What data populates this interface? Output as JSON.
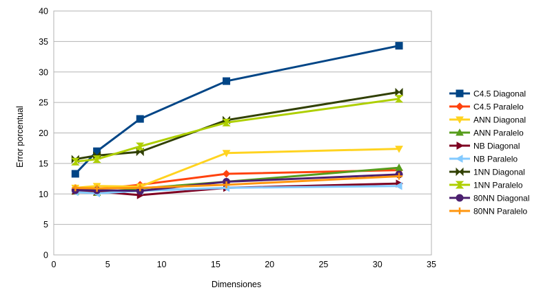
{
  "chart_data": {
    "type": "line",
    "title": "",
    "xlabel": "Dimensiones",
    "ylabel": "Error porcentual",
    "xlim": [
      0,
      35
    ],
    "ylim": [
      0,
      40
    ],
    "xticks": [
      "0",
      "5",
      "10",
      "15",
      "20",
      "25",
      "30",
      "35"
    ],
    "yticks": [
      "0",
      "5",
      "10",
      "15",
      "20",
      "25",
      "30",
      "35",
      "40"
    ],
    "grid": "horizontal",
    "legend_position": "right",
    "x": [
      2,
      4,
      8,
      16,
      32
    ],
    "series": [
      {
        "name": "C4.5 Diagonal",
        "color": "#004586",
        "marker": "square",
        "values": [
          13.3,
          17.0,
          22.3,
          28.5,
          34.3
        ]
      },
      {
        "name": "C4.5 Paralelo",
        "color": "#ff420e",
        "marker": "diamond",
        "values": [
          10.8,
          10.8,
          11.5,
          13.3,
          13.9
        ]
      },
      {
        "name": "ANN Diagonal",
        "color": "#ffd320",
        "marker": "tri-down",
        "values": [
          11.0,
          11.3,
          11.2,
          16.7,
          17.4
        ]
      },
      {
        "name": "ANN Paralelo",
        "color": "#579d1c",
        "marker": "tri-up",
        "values": [
          10.4,
          10.2,
          10.9,
          12.0,
          14.3
        ]
      },
      {
        "name": "NB Diagonal",
        "color": "#7e0021",
        "marker": "tri-right",
        "values": [
          10.5,
          10.4,
          9.8,
          11.0,
          11.7
        ]
      },
      {
        "name": "NB Paralelo",
        "color": "#83caff",
        "marker": "tri-left",
        "values": [
          10.3,
          10.1,
          10.5,
          11.0,
          11.3
        ]
      },
      {
        "name": "1NN Diagonal",
        "color": "#314004",
        "marker": "bowtie",
        "values": [
          15.7,
          16.3,
          16.9,
          22.1,
          26.7
        ]
      },
      {
        "name": "1NN Paralelo",
        "color": "#aecf00",
        "marker": "hourglass",
        "values": [
          15.3,
          15.7,
          17.8,
          21.7,
          25.6
        ]
      },
      {
        "name": "80NN Diagonal",
        "color": "#4b1f6f",
        "marker": "circle",
        "values": [
          10.6,
          10.6,
          10.5,
          12.0,
          13.2
        ]
      },
      {
        "name": "80NN Paralelo",
        "color": "#ff950e",
        "marker": "plus",
        "values": [
          11.0,
          10.9,
          11.0,
          11.5,
          12.9
        ]
      }
    ]
  }
}
